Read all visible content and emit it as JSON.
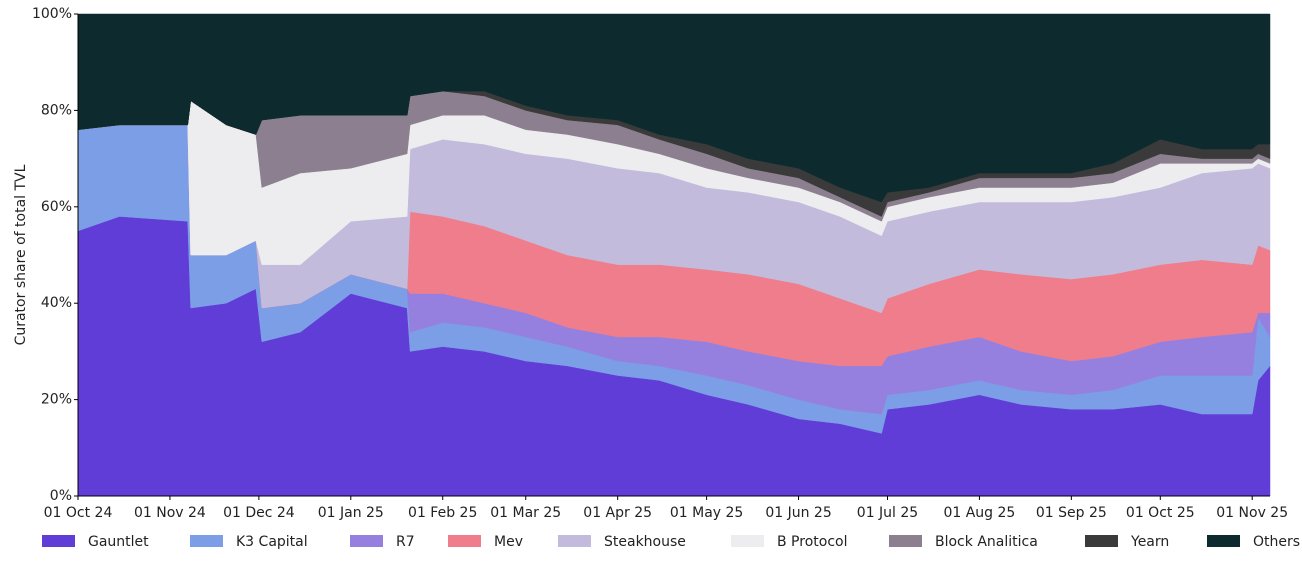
{
  "chart_data": {
    "type": "stacked_area",
    "ylabel": "Curator share of total TVL",
    "x": [
      "2024-10-01",
      "2024-10-15",
      "2024-11-07",
      "2024-11-08",
      "2024-11-20",
      "2024-11-30",
      "2024-12-02",
      "2024-12-15",
      "2025-01-01",
      "2025-01-20",
      "2025-01-21",
      "2025-02-01",
      "2025-02-15",
      "2025-03-01",
      "2025-03-15",
      "2025-04-01",
      "2025-04-15",
      "2025-05-01",
      "2025-05-15",
      "2025-06-01",
      "2025-06-15",
      "2025-06-29",
      "2025-07-01",
      "2025-07-15",
      "2025-08-01",
      "2025-08-15",
      "2025-09-01",
      "2025-09-15",
      "2025-10-01",
      "2025-10-15",
      "2025-11-01",
      "2025-11-03",
      "2025-11-07"
    ],
    "xlim": [
      "2024-10-01",
      "2025-11-07"
    ],
    "xticks": [
      {
        "value": "2024-10-01",
        "label": "01 Oct 24"
      },
      {
        "value": "2024-11-01",
        "label": "01 Nov 24"
      },
      {
        "value": "2024-12-01",
        "label": "01 Dec 24"
      },
      {
        "value": "2025-01-01",
        "label": "01 Jan 25"
      },
      {
        "value": "2025-02-01",
        "label": "01 Feb 25"
      },
      {
        "value": "2025-03-01",
        "label": "01 Mar 25"
      },
      {
        "value": "2025-04-01",
        "label": "01 Apr 25"
      },
      {
        "value": "2025-05-01",
        "label": "01 May 25"
      },
      {
        "value": "2025-06-01",
        "label": "01 Jun 25"
      },
      {
        "value": "2025-07-01",
        "label": "01 Jul 25"
      },
      {
        "value": "2025-08-01",
        "label": "01 Aug 25"
      },
      {
        "value": "2025-09-01",
        "label": "01 Sep 25"
      },
      {
        "value": "2025-10-01",
        "label": "01 Oct 25"
      },
      {
        "value": "2025-11-01",
        "label": "01 Nov 25"
      }
    ],
    "ylim": [
      0,
      100
    ],
    "yticks": [
      {
        "value": 0,
        "label": "0%"
      },
      {
        "value": 20,
        "label": "20%"
      },
      {
        "value": 40,
        "label": "40%"
      },
      {
        "value": 60,
        "label": "60%"
      },
      {
        "value": 80,
        "label": "80%"
      },
      {
        "value": 100,
        "label": "100%"
      }
    ],
    "legend": "bottom",
    "series": [
      {
        "name": "Gauntlet",
        "color": "#613dd8",
        "values": [
          55,
          58,
          57,
          39,
          40,
          43,
          32,
          34,
          42,
          39,
          30,
          31,
          30,
          28,
          27,
          25,
          24,
          21,
          19,
          16,
          15,
          13,
          18,
          19,
          21,
          19,
          18,
          18,
          19,
          17,
          17,
          24,
          27
        ]
      },
      {
        "name": "K3 Capital",
        "color": "#7b9ee6",
        "values": [
          21,
          19,
          20,
          11,
          10,
          10,
          7,
          6,
          4,
          4,
          4,
          5,
          5,
          5,
          4,
          3,
          3,
          4,
          4,
          4,
          3,
          4,
          3,
          3,
          3,
          3,
          3,
          4,
          6,
          8,
          8,
          13,
          6
        ]
      },
      {
        "name": "R7",
        "color": "#9580e0",
        "values": [
          0,
          0,
          0,
          0,
          0,
          0,
          0,
          0,
          0,
          0,
          8,
          6,
          5,
          5,
          4,
          5,
          6,
          7,
          7,
          8,
          9,
          10,
          8,
          9,
          9,
          8,
          7,
          7,
          7,
          8,
          9,
          1,
          5
        ]
      },
      {
        "name": "Mev",
        "color": "#ef7d8b",
        "values": [
          0,
          0,
          0,
          0,
          0,
          0,
          0,
          0,
          0,
          0,
          17,
          16,
          16,
          15,
          15,
          15,
          15,
          15,
          16,
          16,
          14,
          11,
          12,
          13,
          14,
          16,
          17,
          17,
          16,
          16,
          14,
          14,
          13
        ]
      },
      {
        "name": "Steakhouse",
        "color": "#c3bbdc",
        "values": [
          0,
          0,
          0,
          0,
          0,
          0,
          9,
          8,
          11,
          15,
          13,
          16,
          17,
          18,
          20,
          20,
          19,
          17,
          17,
          17,
          17,
          16,
          16,
          15,
          14,
          15,
          16,
          16,
          16,
          18,
          20,
          17,
          17
        ]
      },
      {
        "name": "B Protocol",
        "color": "#ededf0",
        "values": [
          0,
          0,
          0,
          32,
          27,
          22,
          16,
          19,
          11,
          13,
          5,
          5,
          6,
          5,
          5,
          5,
          4,
          4,
          3,
          3,
          3,
          3,
          3,
          3,
          3,
          3,
          3,
          3,
          5,
          2,
          1,
          1,
          1
        ]
      },
      {
        "name": "Block Analitica",
        "color": "#8c8090",
        "values": [
          0,
          0,
          0,
          0,
          0,
          0,
          14,
          12,
          11,
          8,
          6,
          5,
          4,
          4,
          3,
          4,
          3,
          3,
          2,
          2,
          1,
          1,
          1,
          1,
          2,
          2,
          2,
          2,
          2,
          1,
          1,
          1,
          1
        ]
      },
      {
        "name": "Yearn",
        "color": "#3a3a3a",
        "values": [
          0,
          0,
          0,
          0,
          0,
          0,
          0,
          0,
          0,
          0,
          0,
          0,
          1,
          1,
          1,
          1,
          1,
          2,
          2,
          2,
          2,
          3,
          2,
          1,
          1,
          1,
          1,
          2,
          3,
          2,
          2,
          2,
          3
        ]
      },
      {
        "name": "Others",
        "color": "#0d2b2e",
        "values": [
          24,
          23,
          23,
          18,
          23,
          25,
          22,
          21,
          21,
          21,
          17,
          16,
          16,
          19,
          21,
          22,
          25,
          27,
          30,
          32,
          36,
          39,
          37,
          36,
          33,
          33,
          33,
          31,
          26,
          28,
          28,
          27,
          27
        ]
      }
    ]
  }
}
